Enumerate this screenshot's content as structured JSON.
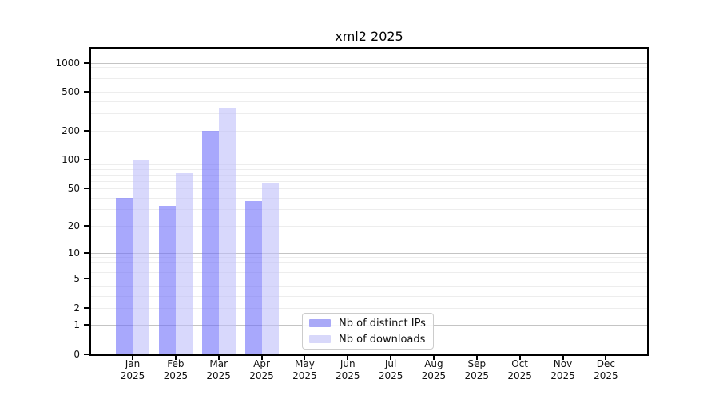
{
  "chart_data": {
    "type": "bar",
    "title": "xml2 2025",
    "categories": [
      "Jan",
      "Feb",
      "Mar",
      "Apr",
      "May",
      "Jun",
      "Jul",
      "Aug",
      "Sep",
      "Oct",
      "Nov",
      "Dec"
    ],
    "year": "2025",
    "series": [
      {
        "name": "Nb of distinct IPs",
        "display_color": "#a9a9f7",
        "fill_rgba": "rgba(110,110,250,0.6)",
        "values": [
          40,
          33,
          200,
          37,
          0,
          0,
          0,
          0,
          0,
          0,
          0,
          0
        ]
      },
      {
        "name": "Nb of downloads",
        "display_color": "#d8d8fa",
        "fill_rgba": "rgba(190,190,250,0.6)",
        "values": [
          100,
          72,
          345,
          57,
          0,
          0,
          0,
          0,
          0,
          0,
          0,
          0
        ]
      }
    ],
    "xlabel": "",
    "ylabel": "",
    "y_ticks": [
      0,
      1,
      2,
      5,
      10,
      20,
      50,
      100,
      200,
      500,
      1000
    ],
    "y_major_gridlines": [
      1,
      10,
      100,
      1000
    ],
    "scale": "log(value+1)",
    "ylim": [
      0,
      1400
    ],
    "grid": true,
    "legend_position": "lower-center-inside",
    "colors": {
      "grid_major": "#c4c4c4",
      "grid_minor": "#ededed",
      "axis": "#000000",
      "text": "#111111",
      "legend_border": "#cccccc",
      "background": "#ffffff"
    }
  }
}
